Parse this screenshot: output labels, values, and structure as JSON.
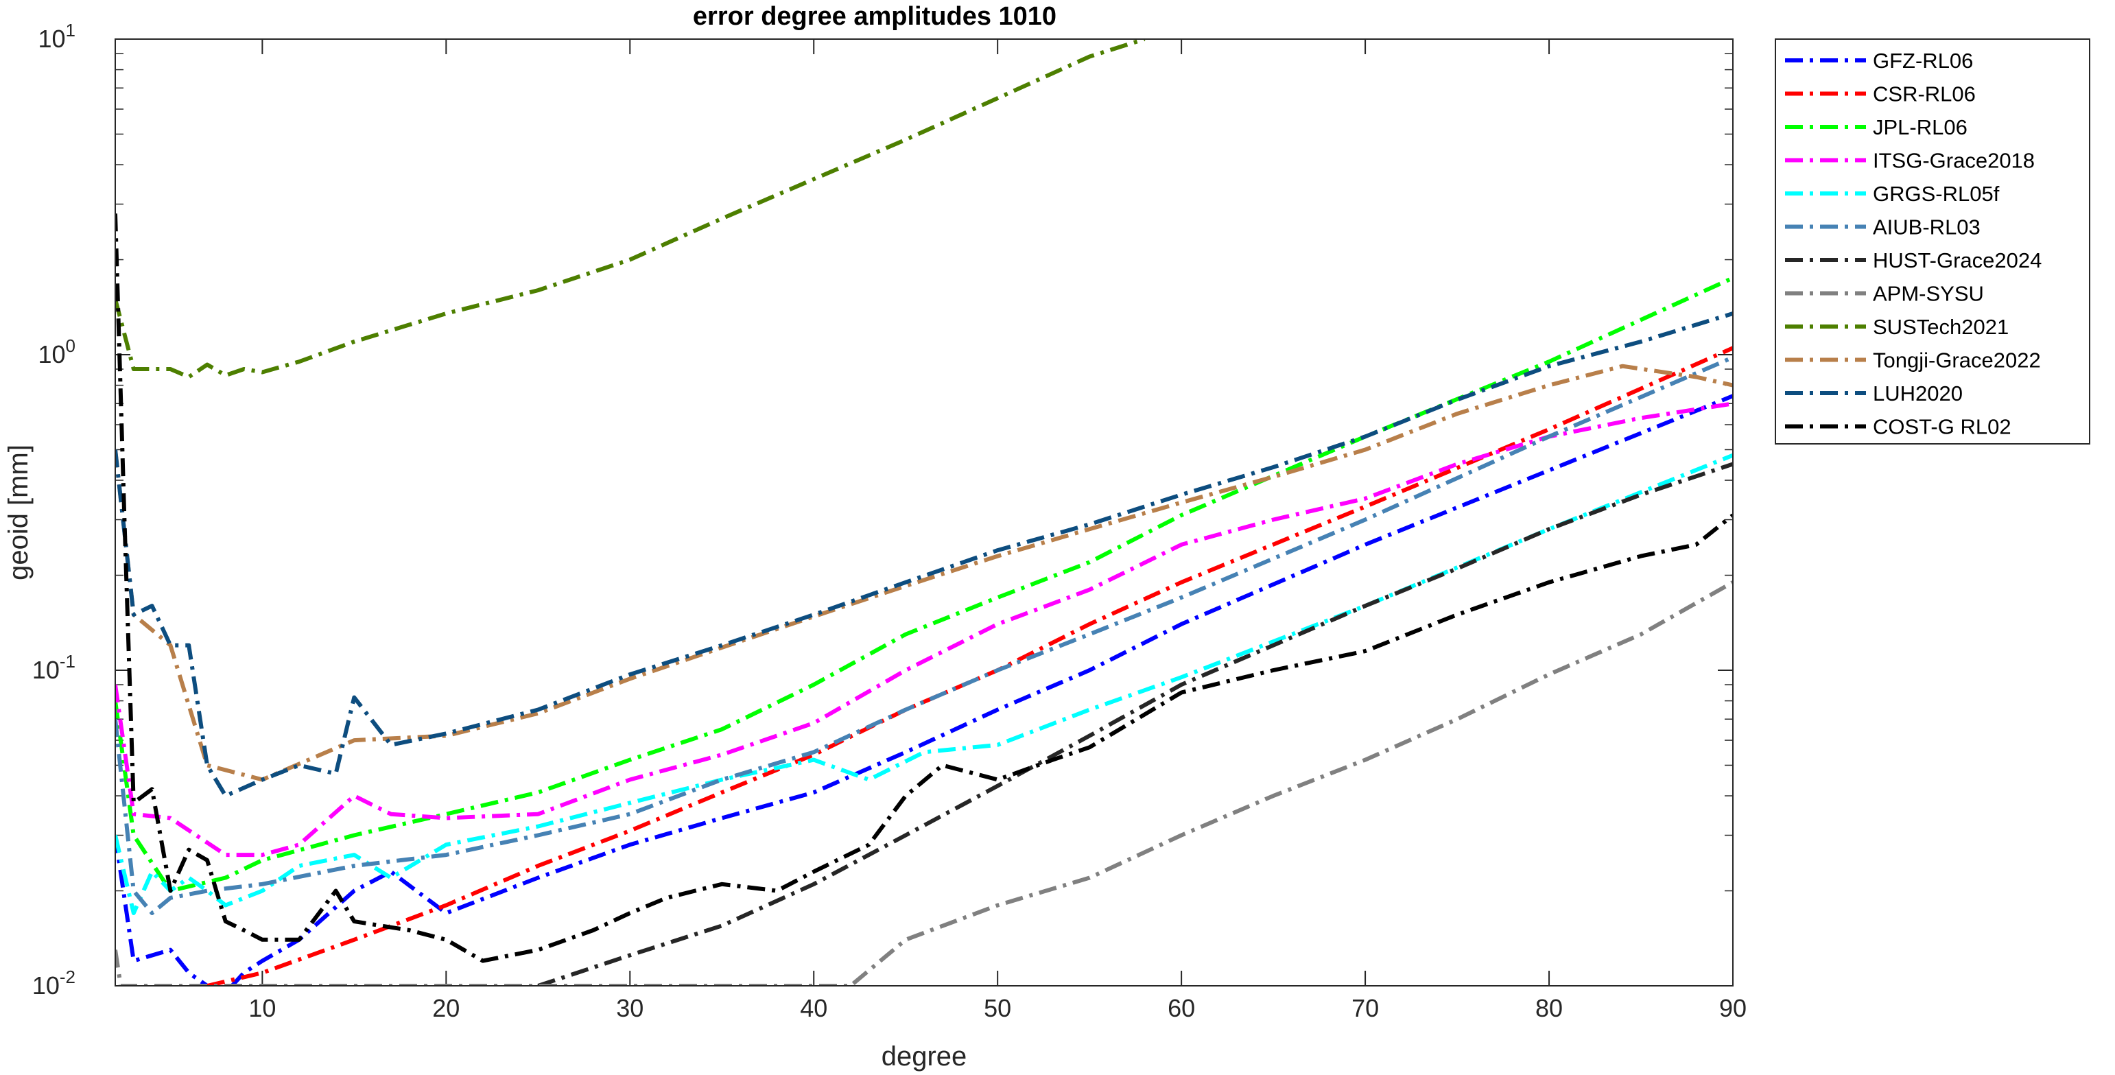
{
  "chart_data": {
    "type": "line",
    "title": "error degree amplitudes 1010",
    "xlabel": "degree",
    "ylabel": "geoid [mm]",
    "xlim": [
      2,
      90
    ],
    "ylim": [
      0.01,
      10
    ],
    "yscale": "log",
    "grid": false,
    "legend_position": "outside-right",
    "x_ticks": [
      "10",
      "20",
      "30",
      "40",
      "50",
      "60",
      "70",
      "80",
      "90"
    ],
    "y_ticks": [
      {
        "base": "10",
        "exp": "-2"
      },
      {
        "base": "10",
        "exp": "-1"
      },
      {
        "base": "10",
        "exp": "0"
      },
      {
        "base": "10",
        "exp": "1"
      }
    ],
    "series": [
      {
        "name": "GFZ-RL06",
        "color": "#0000ff",
        "x": [
          2,
          3,
          5,
          6,
          7,
          8,
          9,
          10,
          12,
          15,
          17,
          20,
          25,
          30,
          35,
          40,
          45,
          50,
          55,
          60,
          70,
          80,
          90
        ],
        "y": [
          0.03,
          0.012,
          0.013,
          0.011,
          0.01,
          0.0095,
          0.011,
          0.012,
          0.014,
          0.02,
          0.023,
          0.017,
          0.022,
          0.028,
          0.034,
          0.041,
          0.055,
          0.075,
          0.1,
          0.14,
          0.25,
          0.43,
          0.74
        ]
      },
      {
        "name": "CSR-RL06",
        "color": "#ff0000",
        "x": [
          7,
          10,
          15,
          20,
          25,
          30,
          35,
          40,
          45,
          50,
          55,
          60,
          70,
          80,
          90
        ],
        "y": [
          0.01,
          0.011,
          0.014,
          0.018,
          0.024,
          0.031,
          0.041,
          0.054,
          0.075,
          0.1,
          0.14,
          0.19,
          0.33,
          0.58,
          1.05
        ]
      },
      {
        "name": "JPL-RL06",
        "color": "#00ff00",
        "x": [
          2,
          3,
          5,
          8,
          10,
          15,
          20,
          25,
          30,
          35,
          40,
          45,
          50,
          55,
          60,
          70,
          80,
          90
        ],
        "y": [
          0.08,
          0.03,
          0.02,
          0.022,
          0.025,
          0.03,
          0.035,
          0.041,
          0.052,
          0.065,
          0.09,
          0.13,
          0.17,
          0.22,
          0.31,
          0.55,
          0.95,
          1.75
        ]
      },
      {
        "name": "ITSG-Grace2018",
        "color": "#ff00ff",
        "x": [
          2,
          3,
          5,
          8,
          10,
          12,
          15,
          17,
          20,
          25,
          30,
          35,
          40,
          45,
          50,
          55,
          60,
          65,
          70,
          75,
          80,
          85,
          90
        ],
        "y": [
          0.09,
          0.035,
          0.034,
          0.026,
          0.026,
          0.028,
          0.04,
          0.035,
          0.034,
          0.035,
          0.045,
          0.054,
          0.068,
          0.1,
          0.14,
          0.18,
          0.25,
          0.3,
          0.35,
          0.45,
          0.55,
          0.63,
          0.7
        ]
      },
      {
        "name": "GRGS-RL05f",
        "color": "#00ffff",
        "x": [
          2,
          3,
          4,
          5,
          6,
          7,
          8,
          10,
          12,
          15,
          17,
          20,
          25,
          30,
          35,
          40,
          43,
          46,
          50,
          55,
          60,
          70,
          80,
          90
        ],
        "y": [
          0.03,
          0.017,
          0.023,
          0.02,
          0.022,
          0.02,
          0.018,
          0.02,
          0.024,
          0.026,
          0.022,
          0.028,
          0.032,
          0.038,
          0.045,
          0.052,
          0.045,
          0.055,
          0.058,
          0.075,
          0.095,
          0.16,
          0.28,
          0.48
        ]
      },
      {
        "name": "AIUB-RL03",
        "color": "#4682b4",
        "x": [
          2,
          3,
          4,
          5,
          7,
          10,
          15,
          20,
          25,
          30,
          35,
          40,
          45,
          50,
          55,
          60,
          70,
          80,
          90
        ],
        "y": [
          0.07,
          0.02,
          0.017,
          0.019,
          0.02,
          0.021,
          0.024,
          0.026,
          0.03,
          0.035,
          0.045,
          0.055,
          0.075,
          0.1,
          0.13,
          0.17,
          0.3,
          0.55,
          0.98
        ]
      },
      {
        "name": "HUST-Grace2024",
        "color": "#262626",
        "x": [
          25,
          30,
          35,
          40,
          45,
          50,
          55,
          60,
          65,
          70,
          75,
          80,
          85,
          90
        ],
        "y": [
          0.01,
          0.0125,
          0.0155,
          0.021,
          0.03,
          0.043,
          0.062,
          0.09,
          0.12,
          0.16,
          0.21,
          0.28,
          0.36,
          0.45
        ]
      },
      {
        "name": "APM-SYSU",
        "color": "#808080",
        "x": [
          2,
          2.3,
          42,
          45,
          50,
          55,
          60,
          65,
          70,
          75,
          80,
          85,
          90
        ],
        "y": [
          0.013,
          0.01,
          0.01,
          0.014,
          0.018,
          0.022,
          0.03,
          0.04,
          0.052,
          0.07,
          0.097,
          0.13,
          0.19
        ]
      },
      {
        "name": "SUSTech2021",
        "color": "#4d7f00",
        "x": [
          2,
          3,
          4,
          5,
          6,
          7,
          8,
          9,
          10,
          12,
          15,
          20,
          25,
          30,
          35,
          40,
          45,
          50,
          55,
          58
        ],
        "y": [
          1.5,
          0.9,
          0.9,
          0.9,
          0.85,
          0.93,
          0.86,
          0.9,
          0.88,
          0.95,
          1.1,
          1.35,
          1.6,
          2.0,
          2.7,
          3.6,
          4.8,
          6.5,
          8.8,
          10
        ]
      },
      {
        "name": "Tongji-Grace2022",
        "color": "#b87f4a",
        "x": [
          2,
          3,
          5,
          7,
          10,
          15,
          20,
          25,
          30,
          35,
          40,
          45,
          50,
          55,
          60,
          65,
          70,
          75,
          80,
          84,
          88,
          90
        ],
        "y": [
          0.5,
          0.15,
          0.12,
          0.05,
          0.045,
          0.06,
          0.062,
          0.073,
          0.094,
          0.118,
          0.148,
          0.185,
          0.23,
          0.28,
          0.34,
          0.41,
          0.5,
          0.65,
          0.8,
          0.92,
          0.85,
          0.8
        ]
      },
      {
        "name": "LUH2020",
        "color": "#0d4d7f",
        "x": [
          2,
          3,
          4,
          5,
          6,
          7,
          8,
          10,
          12,
          14,
          15,
          17,
          20,
          25,
          30,
          35,
          40,
          45,
          50,
          55,
          60,
          65,
          70,
          75,
          80,
          85,
          90
        ],
        "y": [
          0.5,
          0.15,
          0.16,
          0.12,
          0.12,
          0.05,
          0.04,
          0.045,
          0.05,
          0.047,
          0.082,
          0.058,
          0.063,
          0.075,
          0.097,
          0.12,
          0.15,
          0.19,
          0.24,
          0.29,
          0.36,
          0.44,
          0.55,
          0.72,
          0.92,
          1.1,
          1.35
        ]
      },
      {
        "name": "COST-G RL02",
        "color": "#000000",
        "x": [
          2,
          2.5,
          3,
          4,
          5,
          6,
          7,
          8,
          9,
          10,
          12,
          14,
          15,
          18,
          20,
          22,
          25,
          28,
          30,
          32,
          35,
          38,
          40,
          43,
          45,
          47,
          50,
          53,
          55,
          60,
          65,
          70,
          75,
          80,
          85,
          88,
          90
        ],
        "y": [
          2.8,
          0.3,
          0.038,
          0.042,
          0.02,
          0.027,
          0.025,
          0.016,
          0.015,
          0.014,
          0.014,
          0.02,
          0.016,
          0.015,
          0.014,
          0.012,
          0.013,
          0.015,
          0.017,
          0.019,
          0.021,
          0.02,
          0.023,
          0.028,
          0.04,
          0.05,
          0.045,
          0.052,
          0.057,
          0.085,
          0.1,
          0.115,
          0.15,
          0.19,
          0.23,
          0.25,
          0.31
        ]
      }
    ]
  }
}
